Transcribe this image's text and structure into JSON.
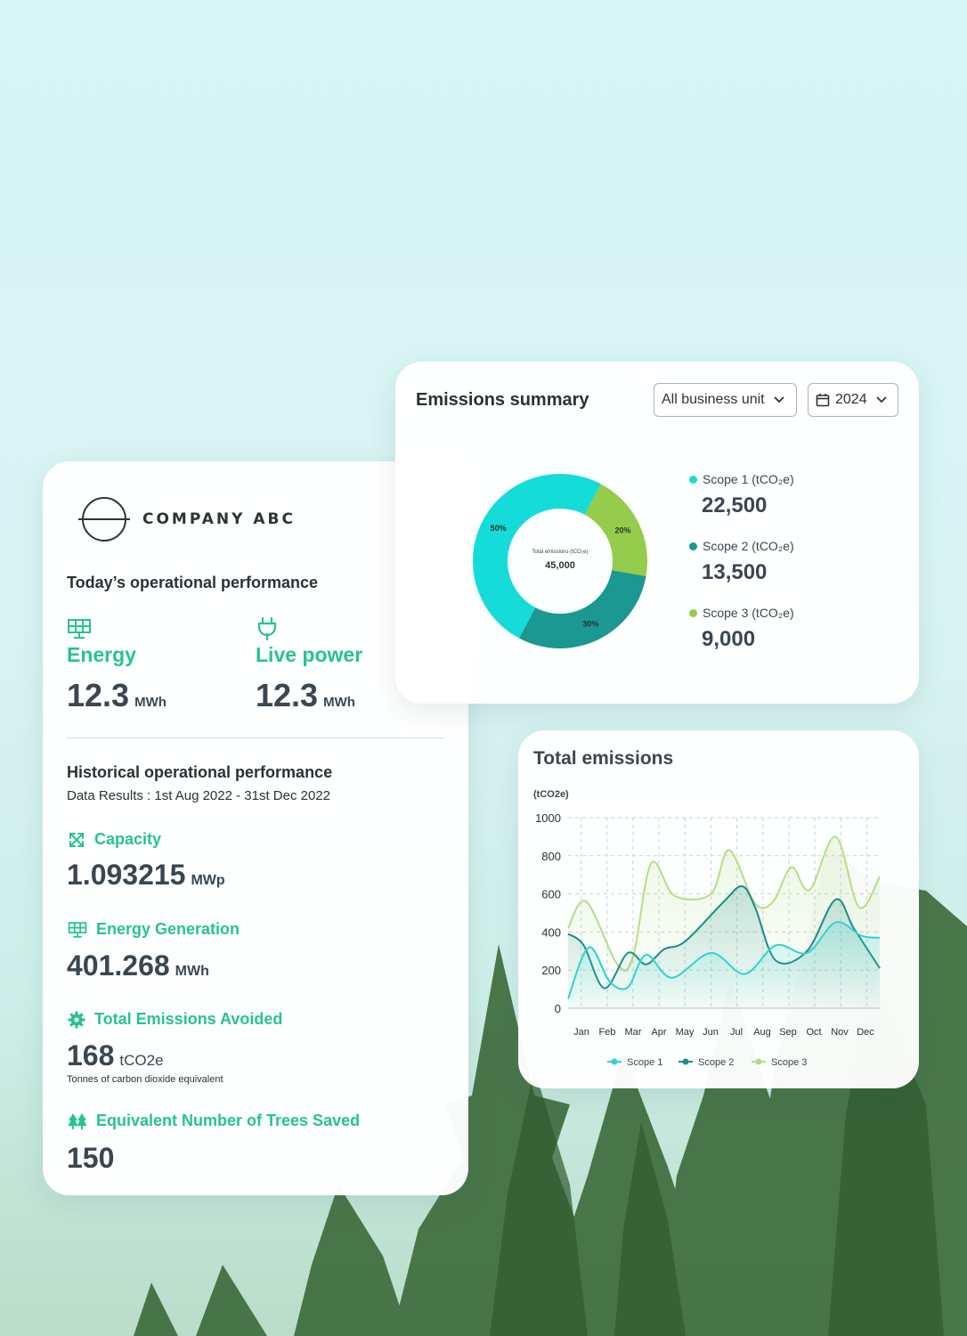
{
  "performance": {
    "logo_text": "COMPANY ABC",
    "today_title": "Today’s operational performance",
    "energy": {
      "label": "Energy",
      "value": "12.3",
      "unit": "MWh",
      "icon": "solar-panel-icon"
    },
    "live_power": {
      "label": "Live power",
      "value": "12.3",
      "unit": "MWh",
      "icon": "plug-icon"
    },
    "historical_title": "Historical operational performance",
    "data_results": "Data Results : 1st Aug 2022 - 31st Dec 2022",
    "capacity": {
      "label": "Capacity",
      "value": "1.093215",
      "unit": "MWp",
      "icon": "expand-arrows-icon"
    },
    "energy_generation": {
      "label": "Energy Generation",
      "value": "401.268",
      "unit": "MWh",
      "icon": "solar-panel-icon"
    },
    "emissions_avoided": {
      "label": "Total Emissions Avoided",
      "value": "168",
      "unit": "tCO2e",
      "note": "Tonnes of carbon dioxide equivalent",
      "icon": "gear-icon"
    },
    "trees_saved": {
      "label": "Equivalent Number of Trees Saved",
      "value": "150",
      "icon": "trees-icon"
    }
  },
  "summary": {
    "title": "Emissions summary",
    "business_unit": "All business unit",
    "year": "2024",
    "scopes": [
      {
        "label": "Scope 1 (tCO₂e)",
        "value": "22,500",
        "color": "#15dcd9"
      },
      {
        "label": "Scope 2 (tCO₂e)",
        "value": "13,500",
        "color": "#1a9891"
      },
      {
        "label": "Scope 3 (tCO₂e)",
        "value": "9,000",
        "color": "#95cc4c"
      }
    ]
  },
  "donut": {
    "type": "pie",
    "center_label": "Total emissions (tCO₂e)",
    "center_value": "45,000",
    "slices": [
      {
        "name": "Scope 1",
        "percent": 50,
        "label": "50%",
        "color": "#15dcd9"
      },
      {
        "name": "Scope 3",
        "percent": 20,
        "label": "20%",
        "color": "#95cc4c"
      },
      {
        "name": "Scope 2",
        "percent": 30,
        "label": "30%",
        "color": "#1a9891"
      }
    ]
  },
  "total_title": "Total emissions",
  "chart_data": {
    "type": "line",
    "ylabel": "(tCO2e)",
    "ylim": [
      0,
      1000
    ],
    "yticks": [
      0,
      200,
      400,
      600,
      800,
      1000
    ],
    "categories": [
      "Jan",
      "Feb",
      "Mar",
      "Apr",
      "May",
      "Jun",
      "Jul",
      "Aug",
      "Sep",
      "Oct",
      "Nov",
      "Dec"
    ],
    "grid": true,
    "legend_position": "bottom",
    "series": [
      {
        "name": "Scope 1",
        "color": "#2fd4d0",
        "points": [
          [
            0,
            50
          ],
          [
            0.8,
            320
          ],
          [
            1.6,
            140
          ],
          [
            2.3,
            110
          ],
          [
            3,
            280
          ],
          [
            4,
            160
          ],
          [
            5.5,
            290
          ],
          [
            6.8,
            180
          ],
          [
            8,
            330
          ],
          [
            9.2,
            290
          ],
          [
            10.3,
            450
          ],
          [
            11.3,
            380
          ],
          [
            12,
            370
          ]
        ]
      },
      {
        "name": "Scope 2",
        "color": "#1d8c8a",
        "points": [
          [
            0,
            390
          ],
          [
            0.6,
            330
          ],
          [
            1.4,
            105
          ],
          [
            2.3,
            290
          ],
          [
            3,
            230
          ],
          [
            3.7,
            310
          ],
          [
            4.5,
            350
          ],
          [
            6,
            560
          ],
          [
            6.7,
            640
          ],
          [
            7.2,
            530
          ],
          [
            8,
            250
          ],
          [
            9.2,
            300
          ],
          [
            10.3,
            570
          ],
          [
            11,
            420
          ],
          [
            12,
            210
          ]
        ]
      },
      {
        "name": "Scope 3",
        "color": "#b3de86",
        "points": [
          [
            0,
            420
          ],
          [
            0.7,
            560
          ],
          [
            1.9,
            230
          ],
          [
            2.5,
            270
          ],
          [
            3.2,
            760
          ],
          [
            4.1,
            590
          ],
          [
            5.5,
            600
          ],
          [
            6.2,
            830
          ],
          [
            7.2,
            550
          ],
          [
            7.9,
            560
          ],
          [
            8.6,
            740
          ],
          [
            9.3,
            620
          ],
          [
            10.3,
            900
          ],
          [
            11.2,
            530
          ],
          [
            12,
            690
          ]
        ]
      }
    ]
  }
}
